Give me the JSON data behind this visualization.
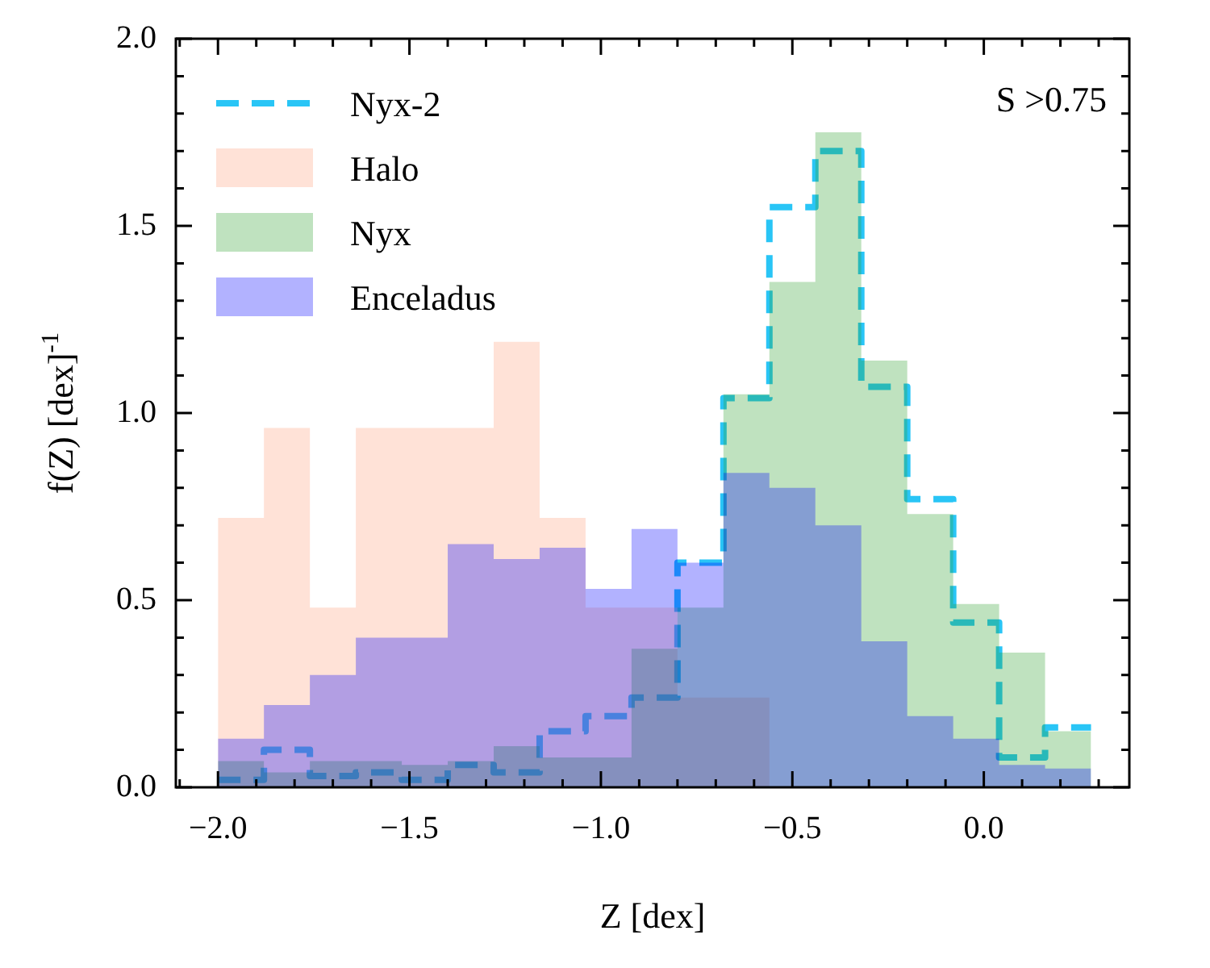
{
  "chart_data": {
    "type": "histogram",
    "xlabel": "Z [dex]",
    "ylabel": "f(Z) [dex]$^{-1}$",
    "annotations": [
      "S >0.75"
    ],
    "bins": [
      -2.0,
      -1.88,
      -1.76,
      -1.64,
      -1.52,
      -1.4,
      -1.28,
      -1.16,
      -1.04,
      -0.92,
      -0.8,
      -0.68,
      -0.56,
      -0.44,
      -0.32,
      -0.2,
      -0.08,
      0.04,
      0.16,
      0.28
    ],
    "series": [
      {
        "name": "Nyx-2",
        "line_style": "dashed",
        "color": "#29c5f6",
        "values": [
          0.02,
          0.1,
          0.03,
          0.04,
          0.02,
          0.06,
          0.04,
          0.15,
          0.19,
          0.24,
          0.6,
          1.04,
          1.55,
          1.7,
          1.07,
          0.77,
          0.44,
          0.08,
          0.16
        ]
      },
      {
        "name": "Halo",
        "color": "#ffa07a",
        "values": [
          0.72,
          0.96,
          0.48,
          0.96,
          0.96,
          0.96,
          1.19,
          0.72,
          0.48,
          0.48,
          0.24,
          0.24,
          0,
          0,
          0,
          0,
          0,
          0,
          0
        ]
      },
      {
        "name": "Nyx",
        "color": "#2ca02c",
        "values": [
          0.07,
          0.04,
          0.07,
          0.07,
          0.06,
          0.07,
          0.11,
          0.08,
          0.08,
          0.37,
          0.48,
          1.05,
          1.35,
          1.75,
          1.14,
          0.73,
          0.49,
          0.36,
          0.15
        ]
      },
      {
        "name": "Enceladus",
        "color": "#0000ff",
        "values": [
          0.13,
          0.22,
          0.3,
          0.4,
          0.4,
          0.65,
          0.61,
          0.64,
          0.53,
          0.69,
          0.6,
          0.84,
          0.8,
          0.7,
          0.39,
          0.19,
          0.13,
          0.06,
          0.05
        ]
      }
    ],
    "xlim": [
      -2.11,
      0.38
    ],
    "xticks": [
      {
        "value": -2.1,
        "label": null
      },
      {
        "value": -2.0,
        "label": "−2.0"
      },
      {
        "value": -1.9,
        "label": null
      },
      {
        "value": -1.8,
        "label": null
      },
      {
        "value": -1.7,
        "label": null
      },
      {
        "value": -1.6,
        "label": null
      },
      {
        "value": -1.5,
        "label": "−1.5"
      },
      {
        "value": -1.4,
        "label": null
      },
      {
        "value": -1.3,
        "label": null
      },
      {
        "value": -1.2,
        "label": null
      },
      {
        "value": -1.1,
        "label": null
      },
      {
        "value": -1.0,
        "label": "−1.0"
      },
      {
        "value": -0.9,
        "label": null
      },
      {
        "value": -0.8,
        "label": null
      },
      {
        "value": -0.7,
        "label": null
      },
      {
        "value": -0.6,
        "label": null
      },
      {
        "value": -0.5,
        "label": "−0.5"
      },
      {
        "value": -0.4,
        "label": null
      },
      {
        "value": -0.3,
        "label": null
      },
      {
        "value": -0.2,
        "label": null
      },
      {
        "value": -0.1,
        "label": null
      },
      {
        "value": 0.0,
        "label": "0.0"
      },
      {
        "value": 0.1,
        "label": null
      },
      {
        "value": 0.2,
        "label": null
      },
      {
        "value": 0.3,
        "label": null
      }
    ],
    "ylim": [
      0,
      2
    ],
    "yticks": [
      {
        "value": 0,
        "label": "0.0"
      },
      {
        "value": 0.1,
        "label": null
      },
      {
        "value": 0.2,
        "label": null
      },
      {
        "value": 0.3,
        "label": null
      },
      {
        "value": 0.4,
        "label": null
      },
      {
        "value": 0.5,
        "label": "0.5"
      },
      {
        "value": 0.6,
        "label": null
      },
      {
        "value": 0.7,
        "label": null
      },
      {
        "value": 0.8,
        "label": null
      },
      {
        "value": 0.9,
        "label": null
      },
      {
        "value": 1.0,
        "label": "1.0"
      },
      {
        "value": 1.1,
        "label": null
      },
      {
        "value": 1.2,
        "label": null
      },
      {
        "value": 1.3,
        "label": null
      },
      {
        "value": 1.4,
        "label": null
      },
      {
        "value": 1.5,
        "label": "1.5"
      },
      {
        "value": 1.6,
        "label": null
      },
      {
        "value": 1.7,
        "label": null
      },
      {
        "value": 1.8,
        "label": null
      },
      {
        "value": 1.9,
        "label": null
      },
      {
        "value": 2.0,
        "label": "2.0"
      }
    ],
    "legend": "top left"
  }
}
